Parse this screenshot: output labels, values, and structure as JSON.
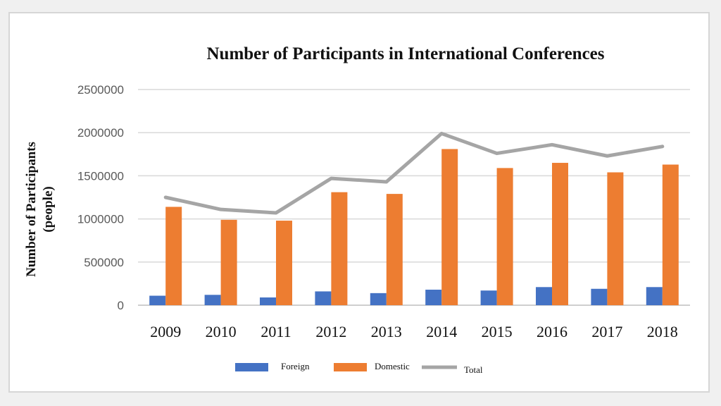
{
  "chart_data": {
    "type": "bar",
    "title": "Number of Participants in International Conferences",
    "xlabel": "",
    "ylabel_lines": [
      "Number of Participants",
      "(people)"
    ],
    "categories": [
      "2009",
      "2010",
      "2011",
      "2012",
      "2013",
      "2014",
      "2015",
      "2016",
      "2017",
      "2018"
    ],
    "ylim": [
      0,
      2500000
    ],
    "yticks": [
      "0",
      "500000",
      "1000000",
      "1500000",
      "2000000",
      "2500000"
    ],
    "grid": true,
    "legend_position": "bottom",
    "series": [
      {
        "name": "Foreign",
        "kind": "bar",
        "color": "#4472c4",
        "values": [
          110000,
          120000,
          90000,
          160000,
          140000,
          180000,
          170000,
          210000,
          190000,
          210000
        ]
      },
      {
        "name": "Domestic",
        "kind": "bar",
        "color": "#ed7d31",
        "values": [
          1140000,
          990000,
          980000,
          1310000,
          1290000,
          1810000,
          1590000,
          1650000,
          1540000,
          1630000
        ]
      },
      {
        "name": "Total",
        "kind": "line",
        "color": "#a5a5a5",
        "values": [
          1250000,
          1110000,
          1070000,
          1470000,
          1430000,
          1990000,
          1760000,
          1860000,
          1730000,
          1840000
        ]
      }
    ]
  }
}
